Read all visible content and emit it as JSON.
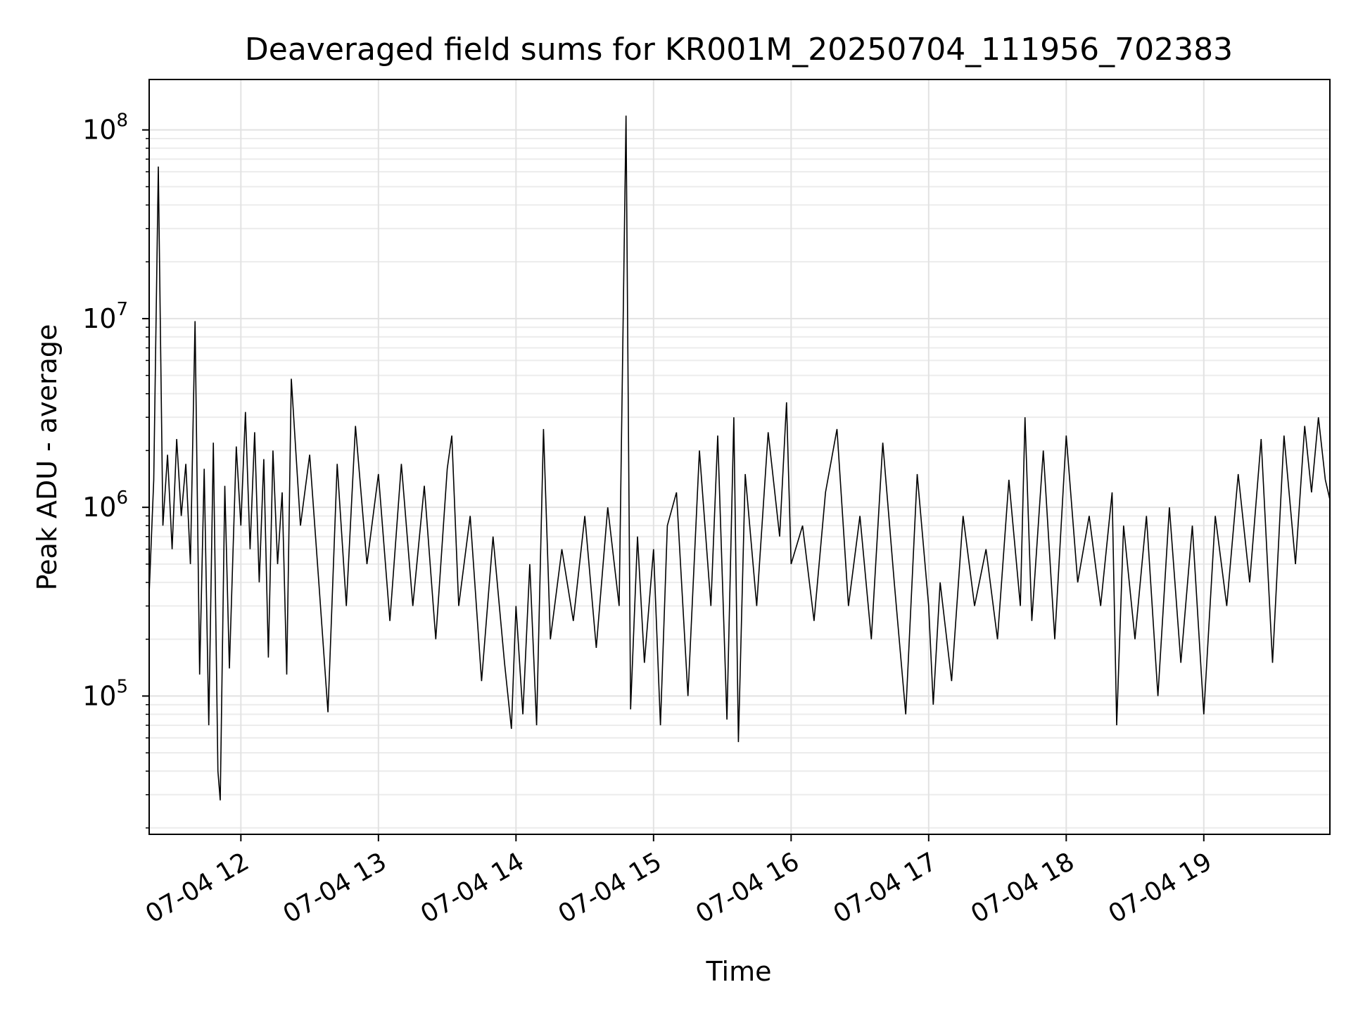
{
  "chart_data": {
    "type": "line",
    "title": "Deaveraged field sums for KR001M_20250704_111956_702383",
    "xlabel": "Time",
    "ylabel": "Peak ADU - average",
    "x_ticks": [
      "07-04 12",
      "07-04 13",
      "07-04 14",
      "07-04 15",
      "07-04 16",
      "07-04 17",
      "07-04 18",
      "07-04 19"
    ],
    "y_ticks": [
      {
        "value": 100000,
        "base": "10",
        "exp": "5"
      },
      {
        "value": 1000000,
        "base": "10",
        "exp": "6"
      },
      {
        "value": 10000000,
        "base": "10",
        "exp": "7"
      },
      {
        "value": 100000000,
        "base": "10",
        "exp": "8"
      }
    ],
    "yscale": "log",
    "ylim": [
      18500,
      185000000
    ],
    "xlim": [
      "2025-07-04 11:20",
      "2025-07-04 19:55"
    ],
    "grid": true,
    "line_color": "#000000",
    "series": [
      {
        "values": [
          [
            "2025-07-04 11:20",
            350000
          ],
          [
            "2025-07-04 11:22",
            1400000
          ],
          [
            "2025-07-04 11:24",
            64000000
          ],
          [
            "2025-07-04 11:26",
            800000
          ],
          [
            "2025-07-04 11:28",
            1900000
          ],
          [
            "2025-07-04 11:30",
            600000
          ],
          [
            "2025-07-04 11:32",
            2300000
          ],
          [
            "2025-07-04 11:34",
            900000
          ],
          [
            "2025-07-04 11:36",
            1700000
          ],
          [
            "2025-07-04 11:38",
            500000
          ],
          [
            "2025-07-04 11:40",
            9700000
          ],
          [
            "2025-07-04 11:42",
            130000
          ],
          [
            "2025-07-04 11:44",
            1600000
          ],
          [
            "2025-07-04 11:46",
            70000
          ],
          [
            "2025-07-04 11:48",
            2200000
          ],
          [
            "2025-07-04 11:50",
            40000
          ],
          [
            "2025-07-04 11:51",
            28000
          ],
          [
            "2025-07-04 11:53",
            1300000
          ],
          [
            "2025-07-04 11:55",
            140000
          ],
          [
            "2025-07-04 11:58",
            2100000
          ],
          [
            "2025-07-04 12:00",
            800000
          ],
          [
            "2025-07-04 12:02",
            3200000
          ],
          [
            "2025-07-04 12:04",
            600000
          ],
          [
            "2025-07-04 12:06",
            2500000
          ],
          [
            "2025-07-04 12:08",
            400000
          ],
          [
            "2025-07-04 12:10",
            1800000
          ],
          [
            "2025-07-04 12:12",
            160000
          ],
          [
            "2025-07-04 12:14",
            2000000
          ],
          [
            "2025-07-04 12:16",
            500000
          ],
          [
            "2025-07-04 12:18",
            1200000
          ],
          [
            "2025-07-04 12:20",
            130000
          ],
          [
            "2025-07-04 12:22",
            4800000
          ],
          [
            "2025-07-04 12:26",
            800000
          ],
          [
            "2025-07-04 12:30",
            1900000
          ],
          [
            "2025-07-04 12:34",
            400000
          ],
          [
            "2025-07-04 12:38",
            82000
          ],
          [
            "2025-07-04 12:42",
            1700000
          ],
          [
            "2025-07-04 12:46",
            300000
          ],
          [
            "2025-07-04 12:50",
            2700000
          ],
          [
            "2025-07-04 12:55",
            500000
          ],
          [
            "2025-07-04 13:00",
            1500000
          ],
          [
            "2025-07-04 13:05",
            250000
          ],
          [
            "2025-07-04 13:10",
            1700000
          ],
          [
            "2025-07-04 13:15",
            300000
          ],
          [
            "2025-07-04 13:20",
            1300000
          ],
          [
            "2025-07-04 13:25",
            200000
          ],
          [
            "2025-07-04 13:30",
            1600000
          ],
          [
            "2025-07-04 13:32",
            2400000
          ],
          [
            "2025-07-04 13:35",
            300000
          ],
          [
            "2025-07-04 13:40",
            900000
          ],
          [
            "2025-07-04 13:45",
            120000
          ],
          [
            "2025-07-04 13:50",
            700000
          ],
          [
            "2025-07-04 13:55",
            150000
          ],
          [
            "2025-07-04 13:58",
            67000
          ],
          [
            "2025-07-04 14:00",
            300000
          ],
          [
            "2025-07-04 14:03",
            80000
          ],
          [
            "2025-07-04 14:06",
            500000
          ],
          [
            "2025-07-04 14:09",
            70000
          ],
          [
            "2025-07-04 14:12",
            2600000
          ],
          [
            "2025-07-04 14:15",
            200000
          ],
          [
            "2025-07-04 14:20",
            600000
          ],
          [
            "2025-07-04 14:25",
            250000
          ],
          [
            "2025-07-04 14:30",
            900000
          ],
          [
            "2025-07-04 14:35",
            180000
          ],
          [
            "2025-07-04 14:40",
            1000000
          ],
          [
            "2025-07-04 14:45",
            300000
          ],
          [
            "2025-07-04 14:48",
            119000000
          ],
          [
            "2025-07-04 14:50",
            85000
          ],
          [
            "2025-07-04 14:53",
            700000
          ],
          [
            "2025-07-04 14:56",
            150000
          ],
          [
            "2025-07-04 15:00",
            600000
          ],
          [
            "2025-07-04 15:03",
            70000
          ],
          [
            "2025-07-04 15:06",
            800000
          ],
          [
            "2025-07-04 15:10",
            1200000
          ],
          [
            "2025-07-04 15:15",
            100000
          ],
          [
            "2025-07-04 15:20",
            2000000
          ],
          [
            "2025-07-04 15:25",
            300000
          ],
          [
            "2025-07-04 15:28",
            2400000
          ],
          [
            "2025-07-04 15:32",
            75000
          ],
          [
            "2025-07-04 15:35",
            3000000
          ],
          [
            "2025-07-04 15:37",
            57000
          ],
          [
            "2025-07-04 15:40",
            1500000
          ],
          [
            "2025-07-04 15:45",
            300000
          ],
          [
            "2025-07-04 15:50",
            2500000
          ],
          [
            "2025-07-04 15:55",
            700000
          ],
          [
            "2025-07-04 15:58",
            3600000
          ],
          [
            "2025-07-04 16:00",
            500000
          ],
          [
            "2025-07-04 16:05",
            800000
          ],
          [
            "2025-07-04 16:10",
            250000
          ],
          [
            "2025-07-04 16:15",
            1200000
          ],
          [
            "2025-07-04 16:20",
            2600000
          ],
          [
            "2025-07-04 16:25",
            300000
          ],
          [
            "2025-07-04 16:30",
            900000
          ],
          [
            "2025-07-04 16:35",
            200000
          ],
          [
            "2025-07-04 16:40",
            2200000
          ],
          [
            "2025-07-04 16:45",
            400000
          ],
          [
            "2025-07-04 16:50",
            80000
          ],
          [
            "2025-07-04 16:55",
            1500000
          ],
          [
            "2025-07-04 17:00",
            300000
          ],
          [
            "2025-07-04 17:02",
            90000
          ],
          [
            "2025-07-04 17:05",
            400000
          ],
          [
            "2025-07-04 17:10",
            120000
          ],
          [
            "2025-07-04 17:15",
            900000
          ],
          [
            "2025-07-04 17:20",
            300000
          ],
          [
            "2025-07-04 17:25",
            600000
          ],
          [
            "2025-07-04 17:30",
            200000
          ],
          [
            "2025-07-04 17:35",
            1400000
          ],
          [
            "2025-07-04 17:40",
            300000
          ],
          [
            "2025-07-04 17:42",
            3000000
          ],
          [
            "2025-07-04 17:45",
            250000
          ],
          [
            "2025-07-04 17:50",
            2000000
          ],
          [
            "2025-07-04 17:55",
            200000
          ],
          [
            "2025-07-04 18:00",
            2400000
          ],
          [
            "2025-07-04 18:05",
            400000
          ],
          [
            "2025-07-04 18:10",
            900000
          ],
          [
            "2025-07-04 18:15",
            300000
          ],
          [
            "2025-07-04 18:20",
            1200000
          ],
          [
            "2025-07-04 18:22",
            70000
          ],
          [
            "2025-07-04 18:25",
            800000
          ],
          [
            "2025-07-04 18:30",
            200000
          ],
          [
            "2025-07-04 18:35",
            900000
          ],
          [
            "2025-07-04 18:40",
            100000
          ],
          [
            "2025-07-04 18:45",
            1000000
          ],
          [
            "2025-07-04 18:50",
            150000
          ],
          [
            "2025-07-04 18:55",
            800000
          ],
          [
            "2025-07-04 19:00",
            80000
          ],
          [
            "2025-07-04 19:05",
            900000
          ],
          [
            "2025-07-04 19:10",
            300000
          ],
          [
            "2025-07-04 19:15",
            1500000
          ],
          [
            "2025-07-04 19:20",
            400000
          ],
          [
            "2025-07-04 19:25",
            2300000
          ],
          [
            "2025-07-04 19:30",
            150000
          ],
          [
            "2025-07-04 19:35",
            2400000
          ],
          [
            "2025-07-04 19:40",
            500000
          ],
          [
            "2025-07-04 19:44",
            2700000
          ],
          [
            "2025-07-04 19:47",
            1200000
          ],
          [
            "2025-07-04 19:50",
            3000000
          ],
          [
            "2025-07-04 19:53",
            1400000
          ],
          [
            "2025-07-04 19:55",
            1100000
          ]
        ]
      }
    ]
  }
}
